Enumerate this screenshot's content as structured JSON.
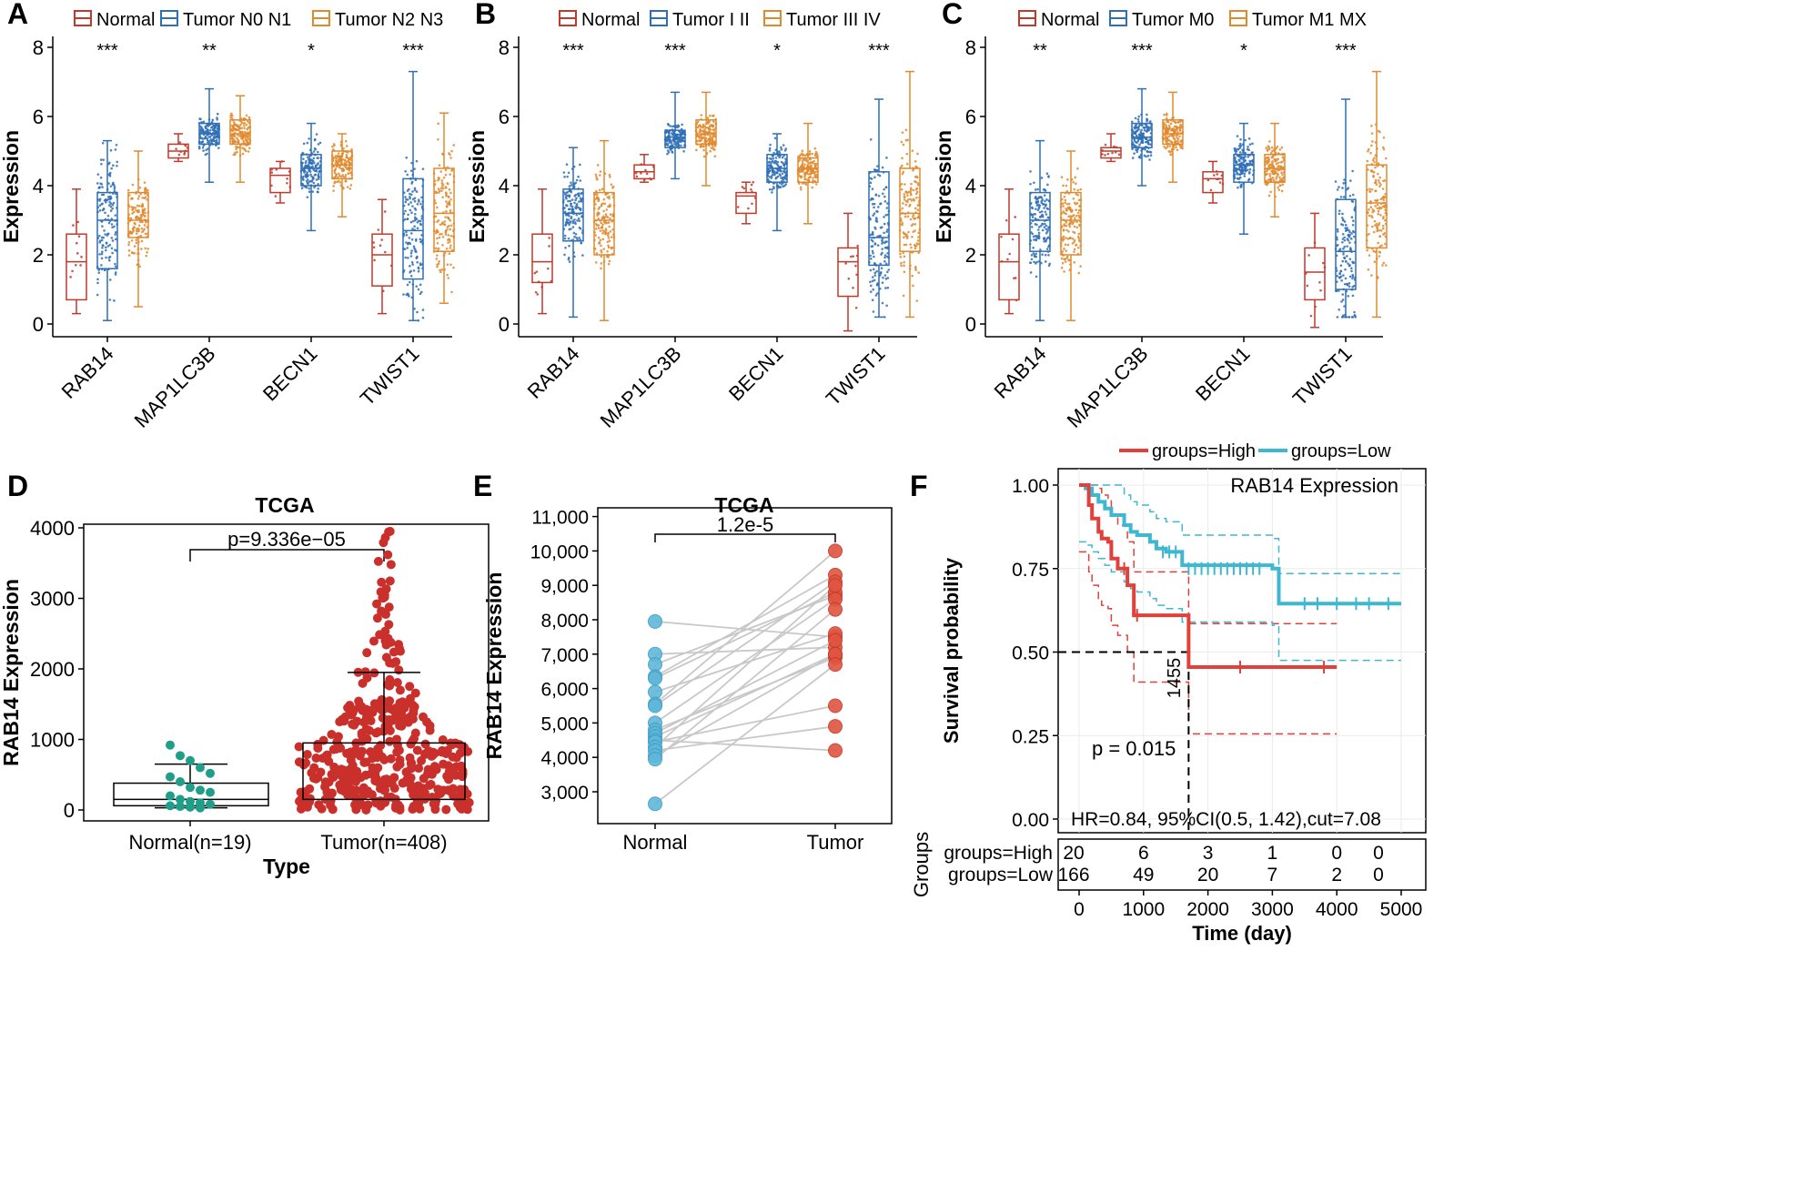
{
  "colors": {
    "normal": "#c1392b",
    "tumorBlue": "#2e6fb5",
    "tumorOrange": "#e08a2e",
    "teal": "#1f9e89",
    "dotRed": "#c9302c",
    "lightBlue": "#5fb7d9",
    "pairRed": "#e0553f",
    "kmRed": "#e0413b",
    "kmBlue": "#3fb7d0"
  },
  "panels": {
    "A": {
      "letter": "A",
      "legend": [
        "Normal",
        "Tumor  N0 N1",
        "Tumor  N2 N3"
      ],
      "sig": [
        "***",
        "**",
        "*",
        "***"
      ]
    },
    "B": {
      "letter": "B",
      "legend": [
        "Normal",
        "Tumor I II",
        "Tumor III IV"
      ],
      "sig": [
        "***",
        "***",
        "*",
        "***"
      ]
    },
    "C": {
      "letter": "C",
      "legend": [
        "Normal",
        "Tumor M0",
        "Tumor M1 MX"
      ],
      "sig": [
        "**",
        "***",
        "*",
        "***"
      ]
    },
    "D": {
      "letter": "D"
    },
    "E": {
      "letter": "E"
    },
    "F": {
      "letter": "F"
    }
  },
  "chart_data": [
    {
      "id": "A",
      "type": "box",
      "title": "",
      "ylabel": "Expression",
      "ylim": [
        0,
        8
      ],
      "yticks": [
        0,
        2,
        4,
        6,
        8
      ],
      "categories": [
        "RAB14",
        "MAP1LC3B",
        "BECN1",
        "TWIST1"
      ],
      "groups": [
        "Normal",
        "Tumor N0 N1",
        "Tumor N2 N3"
      ],
      "stats": [
        [
          [
            0.3,
            0.7,
            1.8,
            2.6,
            3.9
          ],
          [
            0.1,
            1.6,
            3.0,
            3.8,
            5.3
          ],
          [
            0.5,
            2.5,
            3.0,
            3.8,
            5.0
          ]
        ],
        [
          [
            4.7,
            4.8,
            5.0,
            5.2,
            5.5
          ],
          [
            4.1,
            5.2,
            5.5,
            5.8,
            6.8
          ],
          [
            4.1,
            5.2,
            5.5,
            5.9,
            6.6
          ]
        ],
        [
          [
            3.5,
            3.8,
            4.3,
            4.5,
            4.7
          ],
          [
            2.7,
            4.0,
            4.5,
            4.9,
            5.8
          ],
          [
            3.1,
            4.2,
            4.6,
            5.0,
            5.5
          ]
        ],
        [
          [
            0.3,
            1.1,
            2.0,
            2.6,
            3.6
          ],
          [
            0.1,
            1.3,
            2.7,
            4.2,
            7.3
          ],
          [
            0.6,
            2.1,
            3.2,
            4.5,
            6.1
          ]
        ]
      ]
    },
    {
      "id": "B",
      "type": "box",
      "title": "",
      "ylabel": "Expression",
      "ylim": [
        0,
        8
      ],
      "yticks": [
        0,
        2,
        4,
        6,
        8
      ],
      "categories": [
        "RAB14",
        "MAP1LC3B",
        "BECN1",
        "TWIST1"
      ],
      "groups": [
        "Normal",
        "Tumor I II",
        "Tumor III IV"
      ],
      "stats": [
        [
          [
            0.3,
            1.2,
            1.8,
            2.6,
            3.9
          ],
          [
            0.2,
            2.4,
            3.2,
            3.9,
            5.1
          ],
          [
            0.1,
            2.0,
            3.0,
            3.8,
            5.3
          ]
        ],
        [
          [
            4.1,
            4.2,
            4.4,
            4.6,
            4.9
          ],
          [
            4.2,
            5.1,
            5.4,
            5.6,
            6.7
          ],
          [
            4.0,
            5.2,
            5.5,
            5.9,
            6.7
          ]
        ],
        [
          [
            2.9,
            3.2,
            3.7,
            3.8,
            4.1
          ],
          [
            2.7,
            4.1,
            4.5,
            4.9,
            5.5
          ],
          [
            2.9,
            4.1,
            4.5,
            4.8,
            5.8
          ]
        ],
        [
          [
            -0.2,
            0.8,
            1.8,
            2.2,
            3.2
          ],
          [
            0.2,
            1.7,
            2.5,
            4.4,
            6.5
          ],
          [
            0.2,
            2.1,
            3.2,
            4.5,
            7.3
          ]
        ]
      ]
    },
    {
      "id": "C",
      "type": "box",
      "title": "",
      "ylabel": "Expression",
      "ylim": [
        0,
        8
      ],
      "yticks": [
        0,
        2,
        4,
        6,
        8
      ],
      "categories": [
        "RAB14",
        "MAP1LC3B",
        "BECN1",
        "TWIST1"
      ],
      "groups": [
        "Normal",
        "Tumor M0",
        "Tumor M1 MX"
      ],
      "stats": [
        [
          [
            0.3,
            0.7,
            1.8,
            2.6,
            3.9
          ],
          [
            0.1,
            2.1,
            3.0,
            3.8,
            5.3
          ],
          [
            0.1,
            2.0,
            3.0,
            3.8,
            5.0
          ]
        ],
        [
          [
            4.7,
            4.8,
            5.0,
            5.1,
            5.5
          ],
          [
            4.0,
            5.1,
            5.4,
            5.8,
            6.8
          ],
          [
            4.1,
            5.2,
            5.5,
            5.9,
            6.7
          ]
        ],
        [
          [
            3.5,
            3.8,
            4.2,
            4.4,
            4.7
          ],
          [
            2.6,
            4.1,
            4.6,
            4.9,
            5.8
          ],
          [
            3.1,
            4.1,
            4.5,
            4.9,
            5.8
          ]
        ],
        [
          [
            -0.1,
            0.7,
            1.5,
            2.2,
            3.2
          ],
          [
            0.2,
            1.0,
            2.1,
            3.6,
            6.5
          ],
          [
            0.2,
            2.2,
            3.5,
            4.6,
            7.3
          ]
        ]
      ]
    },
    {
      "id": "D",
      "type": "beeswarm-box",
      "title": "TCGA",
      "xlabel": "Type",
      "ylabel": "RAB14 Expression",
      "ylim": [
        0,
        4000
      ],
      "yticks": [
        0,
        1000,
        2000,
        3000,
        4000
      ],
      "categories": [
        "Normal(n=19)",
        "Tumor(n=408)"
      ],
      "box": [
        [
          30,
          60,
          150,
          380,
          650
        ],
        [
          30,
          150,
          450,
          950,
          1950
        ]
      ],
      "pvalue": "p=9.336e−05"
    },
    {
      "id": "E",
      "type": "paired-dot",
      "title": "TCGA",
      "ylabel": "RAB14 Expression",
      "ylim": [
        2500,
        11000
      ],
      "yticks": [
        3000,
        4000,
        5000,
        6000,
        7000,
        8000,
        9000,
        10000,
        11000
      ],
      "yticklabels": [
        "3,000",
        "4,000",
        "5,000",
        "6,000",
        "7,000",
        "8,000",
        "9,000",
        "10,000",
        "11,000"
      ],
      "categories": [
        "Normal",
        "Tumor"
      ],
      "normal": [
        7950,
        7000,
        6700,
        6350,
        6300,
        5900,
        5550,
        5500,
        5000,
        4800,
        4700,
        4600,
        4500,
        4450,
        4300,
        4200,
        4050,
        3950,
        2650
      ],
      "tumor": [
        7500,
        7200,
        8700,
        9300,
        8800,
        7600,
        10000,
        9100,
        8600,
        6900,
        7400,
        7000,
        4200,
        5500,
        9000,
        4900,
        7000,
        8300,
        6700
      ],
      "pvalue": "1.2e-5"
    },
    {
      "id": "F",
      "type": "kaplan-meier",
      "title": "RAB14 Expression",
      "xlabel": "Time (day)",
      "ylabel": "Survival probability",
      "xlim": [
        0,
        5000
      ],
      "ylim": [
        0,
        1
      ],
      "xticks": [
        0,
        1000,
        2000,
        3000,
        4000,
        5000
      ],
      "yticks": [
        "0.00",
        "0.25",
        "0.50",
        "0.75",
        "1.00"
      ],
      "legend": [
        "groups=High",
        "groups=Low"
      ],
      "high": {
        "t": [
          0,
          150,
          200,
          300,
          350,
          450,
          500,
          600,
          750,
          850,
          1000,
          1700,
          4000
        ],
        "s": [
          1.0,
          0.94,
          0.9,
          0.86,
          0.84,
          0.83,
          0.78,
          0.75,
          0.7,
          0.61,
          0.61,
          0.455,
          0.455
        ]
      },
      "low": {
        "t": [
          0,
          100,
          200,
          300,
          400,
          500,
          700,
          800,
          900,
          1100,
          1200,
          1350,
          1400,
          1600,
          3000,
          3100,
          5000
        ],
        "s": [
          1.0,
          0.99,
          0.97,
          0.95,
          0.93,
          0.91,
          0.88,
          0.86,
          0.85,
          0.83,
          0.81,
          0.8,
          0.8,
          0.76,
          0.75,
          0.645,
          0.645
        ]
      },
      "median": "1455",
      "pvalue": "p = 0.015",
      "hr": "HR=0.84, 95%CI(0.5, 1.42),cut=7.08",
      "risktable": {
        "title": "Groups",
        "rows": [
          {
            "label": "groups=High",
            "counts": [
              "20",
              "6",
              "3",
              "1",
              "0",
              "0"
            ]
          },
          {
            "label": "groups=Low",
            "counts": [
              "166",
              "49",
              "20",
              "7",
              "2",
              "0"
            ]
          }
        ]
      }
    }
  ]
}
